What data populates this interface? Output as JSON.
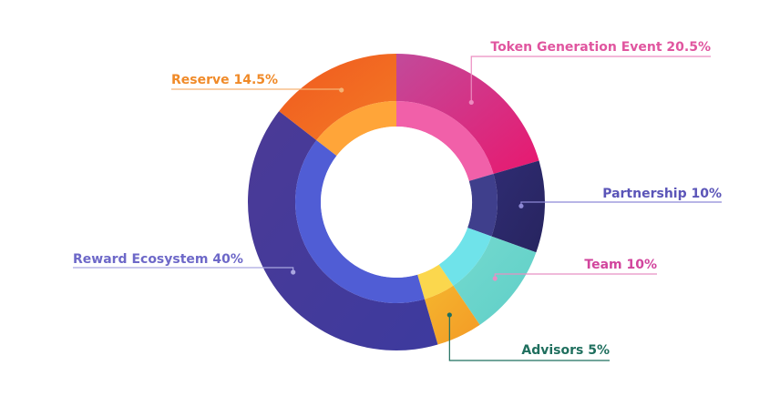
{
  "chart_data": {
    "type": "pie",
    "variant": "donut",
    "title": "",
    "slices": [
      {
        "name": "Token Generation Event",
        "value": 20.5,
        "label": "Token Generation Event  20.5%",
        "color": "#e8186f",
        "color_inner": "#f04fa0",
        "color_light": "#c24a9a",
        "label_color": "#e0559f",
        "line_color": "#ec8cc0"
      },
      {
        "name": "Partnership",
        "value": 10,
        "label": "Partnership 10%",
        "color": "#27245f",
        "color_inner": "#2a2a80",
        "color_light": "#2f2c73",
        "label_color": "#5b55b8",
        "line_color": "#8e89d6"
      },
      {
        "name": "Team",
        "value": 10,
        "label": "Team  10%",
        "color": "#5fcfc7",
        "color_inner": "#5fe0e8",
        "color_light": "#74d9cf",
        "label_color": "#d2459d",
        "line_color": "#e690c4"
      },
      {
        "name": "Advisors",
        "value": 5,
        "label": "Advisors 5%",
        "color": "#f39a26",
        "color_inner": "#fbd33a",
        "color_light": "#f5b52e",
        "label_color": "#1f6f5e",
        "line_color": "#1f6f5e"
      },
      {
        "name": "Reward Ecosystem",
        "value": 40,
        "label": "Reward Ecosystem 40%",
        "color": "#3d3a9e",
        "color_inner": "#3d4bd0",
        "color_light": "#4b3a96",
        "label_color": "#6d68c8",
        "line_color": "#a9a6e0"
      },
      {
        "name": "Reserve",
        "value": 14.5,
        "label": "Reserve 14.5%",
        "color": "#f37a25",
        "color_inner": "#ff9b24",
        "color_light": "#f0591f",
        "label_color": "#f08a28",
        "line_color": "#f5b273"
      }
    ]
  }
}
